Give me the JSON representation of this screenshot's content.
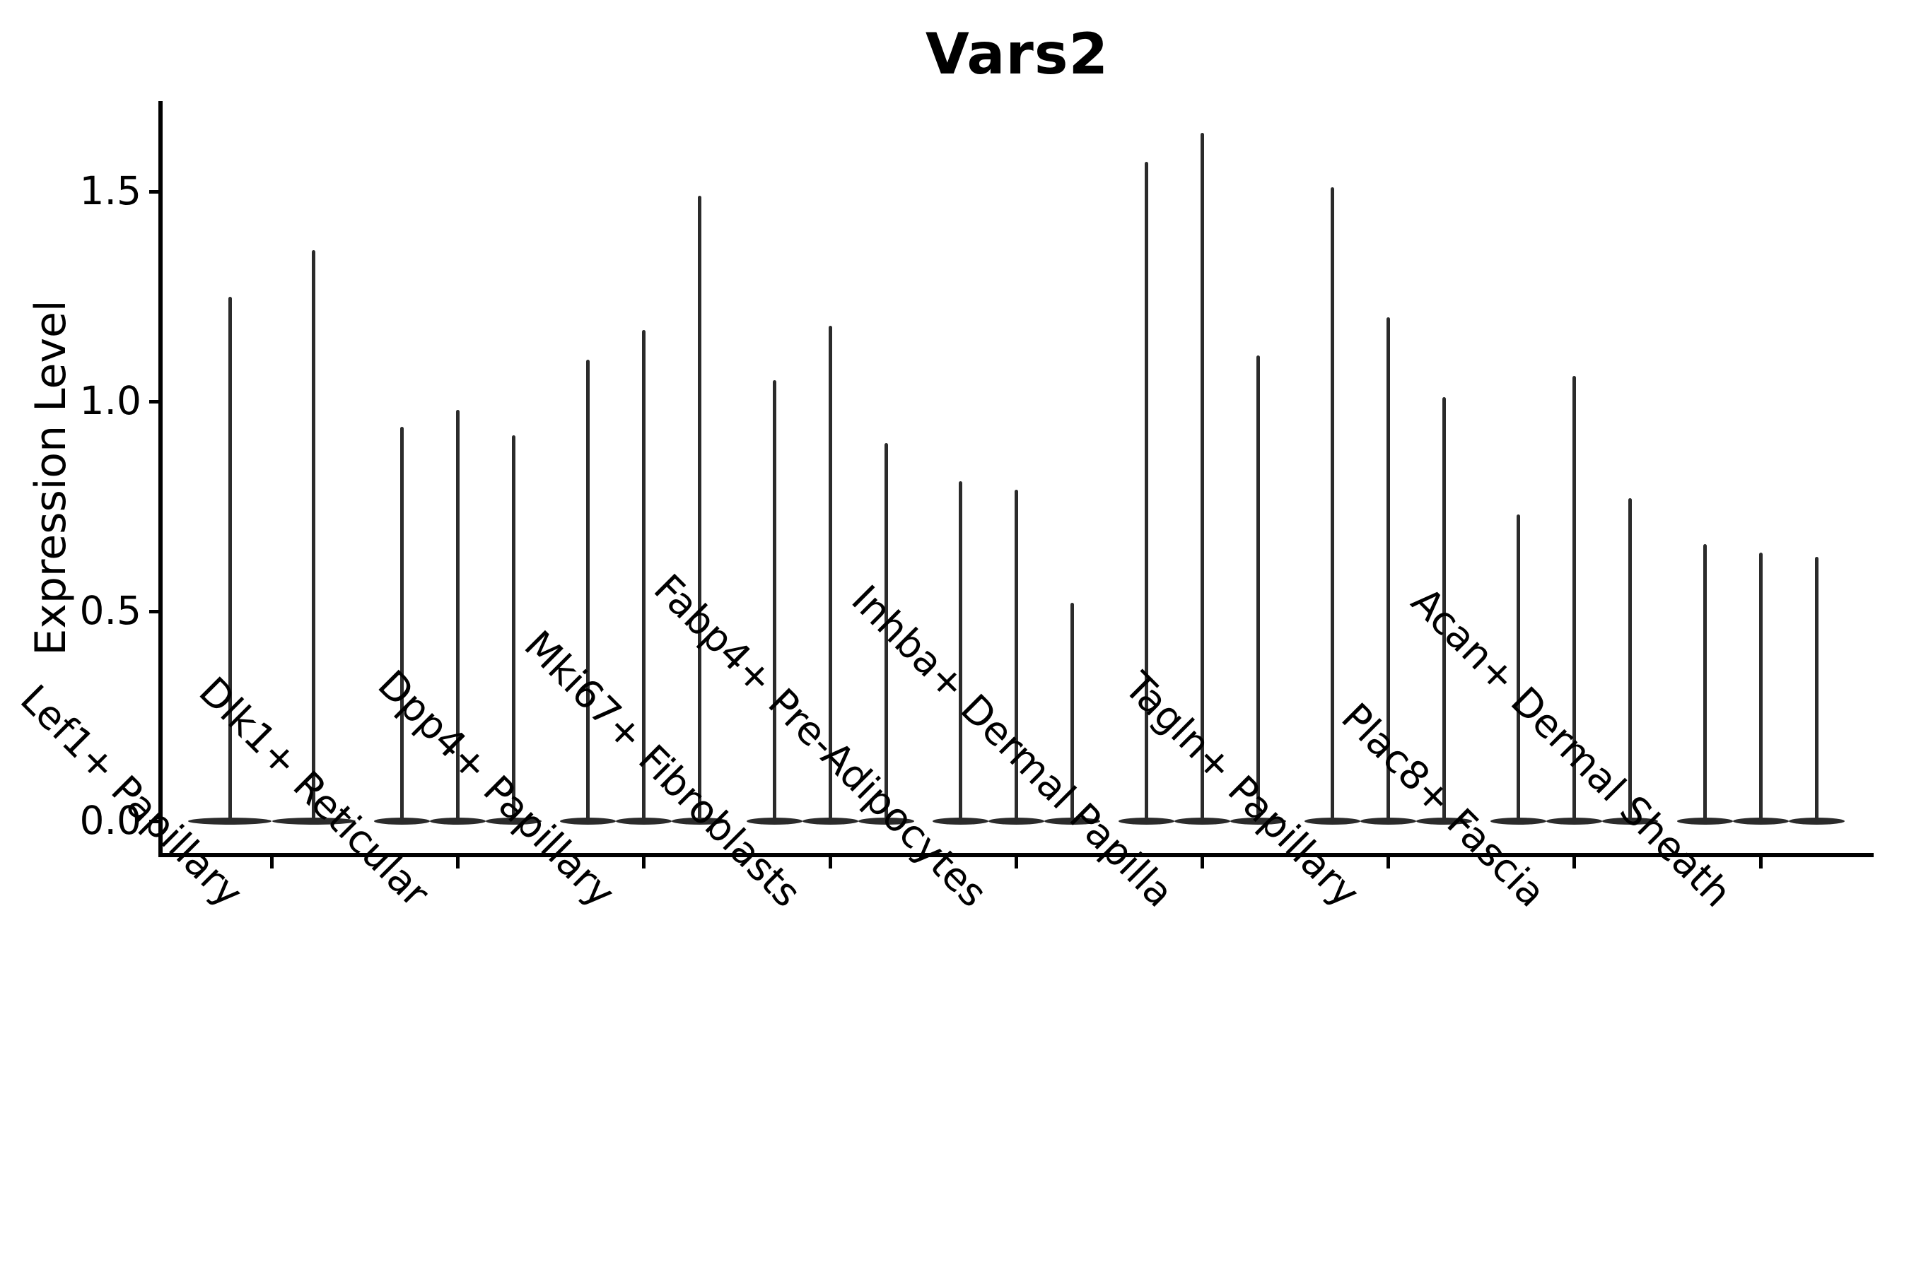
{
  "title": "Vars2",
  "ylabel": "Expression Level",
  "colors": {
    "violin": "#2b2b2b",
    "axis": "#000000",
    "background": "#ffffff"
  },
  "chart_data": {
    "type": "violin",
    "title": "Vars2",
    "xlabel": "",
    "ylabel": "Expression Level",
    "grid": false,
    "legend": "none",
    "ylim": [
      -0.08,
      1.72
    ],
    "yticks": [
      0.0,
      0.5,
      1.0,
      1.5
    ],
    "ytick_labels": [
      "0.0",
      "0.5",
      "1.0",
      "1.5"
    ],
    "x_tick_rotation": 45,
    "style_note": "needle-like violins: flat dense mass at 0 expression with thin spikes reaching each violin maximum",
    "categories": [
      "Lef1+ Papillary",
      "Dlk1+ Reticular",
      "Dpp4+ Papillary",
      "Mki67+ Fibroblasts",
      "Fabp4+ Pre-Adipocytes",
      "Inhba+ Dermal Papilla",
      "Tagln+ Papillary",
      "Plac8+ Fascia",
      "Acan+ Dermal Sheath"
    ],
    "groups": [
      {
        "category": "Lef1+ Papillary",
        "violin_maxima": [
          1.25,
          1.36
        ]
      },
      {
        "category": "Dlk1+ Reticular",
        "violin_maxima": [
          0.94,
          0.98,
          0.92
        ]
      },
      {
        "category": "Dpp4+ Papillary",
        "violin_maxima": [
          1.1,
          1.17,
          1.49
        ]
      },
      {
        "category": "Mki67+ Fibroblasts",
        "violin_maxima": [
          1.05,
          1.18,
          0.9
        ]
      },
      {
        "category": "Fabp4+ Pre-Adipocytes",
        "violin_maxima": [
          0.81,
          0.79,
          0.52
        ]
      },
      {
        "category": "Inhba+ Dermal Papilla",
        "violin_maxima": [
          1.57,
          1.64,
          1.11
        ]
      },
      {
        "category": "Tagln+ Papillary",
        "violin_maxima": [
          1.51,
          1.2,
          1.01
        ]
      },
      {
        "category": "Plac8+ Fascia",
        "violin_maxima": [
          0.73,
          1.06,
          0.77
        ]
      },
      {
        "category": "Acan+ Dermal Sheath",
        "violin_maxima": [
          0.66,
          0.64,
          0.63
        ]
      }
    ]
  }
}
